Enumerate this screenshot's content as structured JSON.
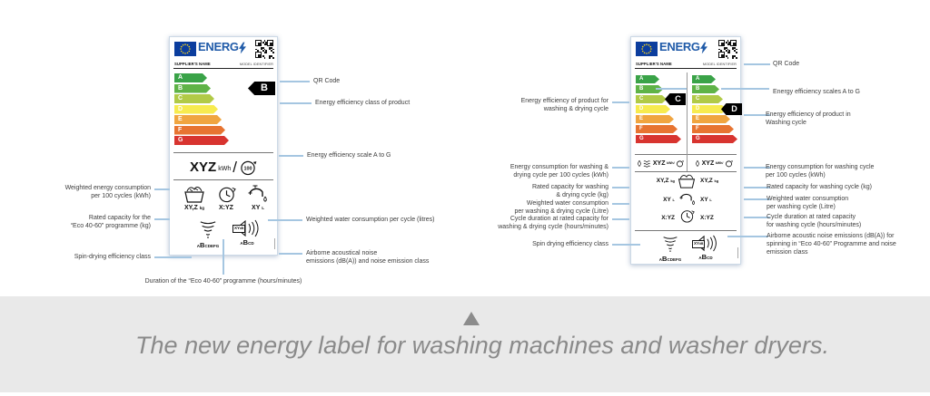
{
  "colors": {
    "eu_blue": "#1f5aa8",
    "flag_blue": "#0b3d9e",
    "star_yellow": "#ffd617",
    "connector": "#a5c6e1",
    "caption_bg": "#e9e9e9",
    "caption_text": "#8a8a8a",
    "tag_black": "#000000"
  },
  "scale": {
    "letters": [
      "A",
      "B",
      "C",
      "D",
      "E",
      "F",
      "G"
    ],
    "colors": [
      "#3aa348",
      "#5fb347",
      "#b1ca47",
      "#f7eb4f",
      "#f0a540",
      "#e77431",
      "#d8342f"
    ]
  },
  "label_common": {
    "brand": "ENERG",
    "supplier": "SUPPLIER'S NAME",
    "model": "MODEL IDENTIFIER"
  },
  "label_left": {
    "class_tag": "B",
    "kwh_value": "XYZ",
    "kwh_unit": "kWh",
    "kwh_sep": "/",
    "kwh_per": "100",
    "capacity_value": "XY,Z",
    "capacity_unit": "kg",
    "duration_value": "X:YZ",
    "water_value": "XY",
    "water_unit": "L",
    "spin_pre": "A",
    "spin_sel": "B",
    "spin_post": "CDEFG",
    "noise_box_value": "XY",
    "noise_box_unit": "dB",
    "noise_pre": "A",
    "noise_sel": "B",
    "noise_post": "CD"
  },
  "label_right": {
    "class_wd": "C",
    "class_w": "D",
    "wd_kwh_value": "XYZ",
    "wd_kwh_unit": "kWh/",
    "w_kwh_value": "XYZ",
    "w_kwh_unit": "kWh/",
    "wd_capacity": "XY,Z",
    "wd_capacity_unit": "kg",
    "w_capacity": "XY,Z",
    "w_capacity_unit": "kg",
    "wd_water": "XY",
    "wd_water_unit": "L",
    "w_water": "XY",
    "w_water_unit": "L",
    "wd_duration": "X:YZ",
    "w_duration": "X:YZ",
    "spin_pre": "A",
    "spin_sel": "B",
    "spin_post": "CDEFG",
    "noise_box_value": "XY",
    "noise_box_unit": "dB",
    "noise_pre": "A",
    "noise_sel": "B",
    "noise_post": "CD"
  },
  "ann": {
    "ll_left": [
      "Weighted energy consumption\nper 100 cycles (kWh)",
      "Rated capacity for the\n“Eco 40-60” programme (kg)",
      "Spin-drying efficiency class",
      "Duration of the “Eco 40-60” programme (hours/minutes)"
    ],
    "ll_right": [
      "QR Code",
      "Energy efficiency class of product",
      "Energy efficiency scale A to G",
      "Weighted water consumption per cycle (litres)",
      "Airborne acoustical noise\nemissions (dB(A)) and noise emission class"
    ],
    "rl_left": [
      "Energy efficiency of product for\nwashing & drying cycle",
      "Energy consumption for washing &\ndrying cycle per 100 cycles (kWh)",
      "Rated capacity for washing\n& drying cycle (kg)",
      "Weighted water consumption\nper washing & drying cycle  (Litre)",
      "Cycle duration at rated capacity for\nwashing & drying cycle (hours/minutes)",
      "Spin drying efficiency class"
    ],
    "rl_right": [
      "QR Code",
      "Energy efficiency scales A to G",
      "Energy efficiency of product in\nWashing cycle",
      "Energy consumption for washing cycle\nper 100 cycles (kWh)",
      "Rated capacity for washing cycle (kg)",
      "Weighted water consumption\nper washing cycle  (Litre)",
      "Cycle duration at rated capacity\nfor washing cycle (hours/minutes)",
      "Airborne acoustic noise emissions (dB(A)) for\nspinning in “Eco 40-60” Programme and noise\nemission class"
    ]
  },
  "caption": {
    "marker_icon": "up-triangle",
    "text": "The new energy label for washing machines and washer dryers."
  }
}
